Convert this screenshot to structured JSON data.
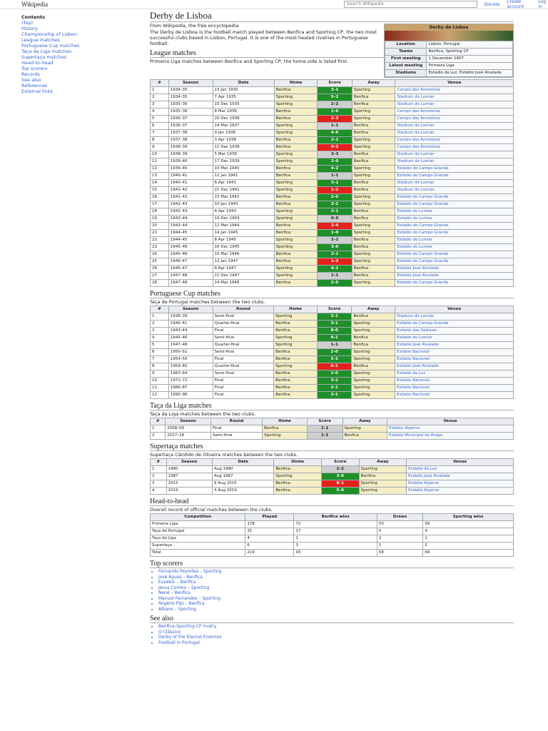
{
  "header": {
    "logo": "Wikipedia",
    "search": "Search Wikipedia",
    "links": [
      "Donate",
      "Create account",
      "Log in"
    ]
  },
  "sidebar": {
    "title": "Contents",
    "items": [
      "(Top)",
      "History",
      "Championship of Lisbon",
      "League matches",
      "Portuguese Cup matches",
      "Taça da Liga matches",
      "Supertaça matches",
      "Head-to-head",
      "Top scorers",
      "Records",
      "See also",
      "References",
      "External links"
    ]
  },
  "article": {
    "title": "Derby de Lisboa",
    "tagline": "From Wikipedia, the free encyclopedia",
    "intro": "The Derby de Lisboa is the football match played between Benfica and Sporting CP, the two most successful clubs based in Lisbon, Portugal. It is one of the most heated rivalries in Portuguese football."
  },
  "infobox": {
    "title": "Derby de Lisboa",
    "rows": [
      [
        "Location",
        "Lisbon, Portugal"
      ],
      [
        "Teams",
        "Benfica, Sporting CP"
      ],
      [
        "First meeting",
        "1 December 1907"
      ],
      [
        "Latest meeting",
        "Primeira Liga"
      ],
      [
        "Stadiums",
        "Estádio da Luz, Estádio José Alvalade"
      ]
    ]
  },
  "result_colors": {
    "home": "#1f8f2a",
    "away": "#e3221b",
    "draw": "#cfcfcf"
  },
  "sections": [
    {
      "heading": "League matches",
      "text": "Primeira Liga matches between Benfica and Sporting CP; the home side is listed first.",
      "table": {
        "headers": [
          "#",
          "Season",
          "Date",
          "Home",
          "Score",
          "Away",
          "Venue"
        ],
        "score_col": 4,
        "rows": [
          [
            "1",
            "1934–35",
            "13 Jan 1935",
            "Benfica",
            "3–1",
            "Sporting",
            "Campo das Amoreiras"
          ],
          [
            "2",
            "1934–35",
            "7 Apr 1935",
            "Sporting",
            "5–2",
            "Benfica",
            "Stadium do Lumiar"
          ],
          [
            "3",
            "1935–36",
            "15 Dec 1935",
            "Sporting",
            "2–2",
            "Benfica",
            "Stadium do Lumiar"
          ],
          [
            "4",
            "1935–36",
            "8 Mar 1936",
            "Benfica",
            "1–0",
            "Sporting",
            "Campo das Amoreiras"
          ],
          [
            "5",
            "1936–37",
            "20 Dec 1936",
            "Benfica",
            "2–3",
            "Sporting",
            "Campo das Amoreiras"
          ],
          [
            "6",
            "1936–37",
            "14 Mar 1937",
            "Sporting",
            "1–1",
            "Benfica",
            "Stadium do Lumiar"
          ],
          [
            "7",
            "1937–38",
            "9 Jan 1938",
            "Sporting",
            "4–0",
            "Benfica",
            "Stadium do Lumiar"
          ],
          [
            "8",
            "1937–38",
            "3 Apr 1938",
            "Benfica",
            "2–1",
            "Sporting",
            "Campo das Amoreiras"
          ],
          [
            "9",
            "1938–39",
            "11 Dec 1938",
            "Benfica",
            "0–2",
            "Sporting",
            "Campo das Amoreiras"
          ],
          [
            "10",
            "1938–39",
            "5 Mar 1939",
            "Sporting",
            "3–3",
            "Benfica",
            "Stadium do Lumiar"
          ],
          [
            "11",
            "1939–40",
            "17 Dec 1939",
            "Sporting",
            "2–0",
            "Benfica",
            "Stadium do Lumiar"
          ],
          [
            "12",
            "1939–40",
            "10 Mar 1940",
            "Benfica",
            "4–2",
            "Sporting",
            "Estádio do Campo Grande"
          ],
          [
            "13",
            "1940–41",
            "12 Jan 1941",
            "Benfica",
            "1–1",
            "Sporting",
            "Estádio do Campo Grande"
          ],
          [
            "14",
            "1940–41",
            "6 Apr 1941",
            "Sporting",
            "3–1",
            "Benfica",
            "Stadium do Lumiar"
          ],
          [
            "15",
            "1941–42",
            "21 Dec 1941",
            "Sporting",
            "1–2",
            "Benfica",
            "Stadium do Lumiar"
          ],
          [
            "16",
            "1941–42",
            "15 Mar 1942",
            "Benfica",
            "2–0",
            "Sporting",
            "Estádio do Campo Grande"
          ],
          [
            "17",
            "1942–43",
            "10 Jan 1943",
            "Benfica",
            "3–2",
            "Sporting",
            "Estádio do Campo Grande"
          ],
          [
            "18",
            "1942–43",
            "4 Apr 1943",
            "Sporting",
            "2–1",
            "Benfica",
            "Estádio do Lumiar"
          ],
          [
            "19",
            "1943–44",
            "19 Dec 1943",
            "Sporting",
            "0–0",
            "Benfica",
            "Estádio do Lumiar"
          ],
          [
            "20",
            "1943–44",
            "12 Mar 1944",
            "Benfica",
            "2–4",
            "Sporting",
            "Estádio do Campo Grande"
          ],
          [
            "21",
            "1944–45",
            "14 Jan 1945",
            "Benfica",
            "1–0",
            "Sporting",
            "Estádio do Campo Grande"
          ],
          [
            "22",
            "1944–45",
            "8 Apr 1945",
            "Sporting",
            "2–2",
            "Benfica",
            "Estádio do Lumiar"
          ],
          [
            "23",
            "1945–46",
            "16 Dec 1945",
            "Sporting",
            "3–0",
            "Benfica",
            "Estádio do Lumiar"
          ],
          [
            "24",
            "1945–46",
            "10 Mar 1946",
            "Benfica",
            "2–1",
            "Sporting",
            "Estádio do Campo Grande"
          ],
          [
            "25",
            "1946–47",
            "12 Jan 1947",
            "Benfica",
            "1–3",
            "Sporting",
            "Estádio do Campo Grande"
          ],
          [
            "26",
            "1946–47",
            "6 Apr 1947",
            "Sporting",
            "4–1",
            "Benfica",
            "Estádio José Alvalade"
          ],
          [
            "27",
            "1947–48",
            "21 Dec 1947",
            "Sporting",
            "1–1",
            "Benfica",
            "Estádio José Alvalade"
          ],
          [
            "28",
            "1947–48",
            "14 Mar 1948",
            "Benfica",
            "2–0",
            "Sporting",
            "Estádio do Campo Grande"
          ]
        ]
      }
    },
    {
      "heading": "Portuguese Cup matches",
      "text": "Taça de Portugal matches between the two clubs.",
      "table": {
        "headers": [
          "#",
          "Season",
          "Round",
          "Home",
          "Score",
          "Away",
          "Venue"
        ],
        "score_col": 4,
        "rows": [
          [
            "1",
            "1938–39",
            "Semi-final",
            "Sporting",
            "2–1",
            "Benfica",
            "Stadium do Lumiar"
          ],
          [
            "2",
            "1940–41",
            "Quarter-final",
            "Benfica",
            "3–1",
            "Sporting",
            "Estádio do Campo Grande"
          ],
          [
            "3",
            "1943–44",
            "Final",
            "Benfica",
            "8–0",
            "Sporting",
            "Estádio das Salésias"
          ],
          [
            "4",
            "1945–46",
            "Semi-final",
            "Sporting",
            "4–2",
            "Benfica",
            "Estádio do Lumiar"
          ],
          [
            "5",
            "1947–48",
            "Quarter-final",
            "Sporting",
            "1–1",
            "Benfica",
            "Estádio José Alvalade"
          ],
          [
            "6",
            "1950–51",
            "Semi-final",
            "Benfica",
            "2–0",
            "Sporting",
            "Estádio Nacional"
          ],
          [
            "7",
            "1954–55",
            "Final",
            "Benfica",
            "2–1",
            "Sporting",
            "Estádio Nacional"
          ],
          [
            "8",
            "1959–60",
            "Quarter-final",
            "Sporting",
            "0–1",
            "Benfica",
            "Estádio José Alvalade"
          ],
          [
            "9",
            "1963–64",
            "Semi-final",
            "Benfica",
            "1–0",
            "Sporting",
            "Estádio da Luz"
          ],
          [
            "10",
            "1971–72",
            "Final",
            "Benfica",
            "3–2",
            "Sporting",
            "Estádio Nacional"
          ],
          [
            "11",
            "1986–87",
            "Final",
            "Benfica",
            "2–1",
            "Sporting",
            "Estádio Nacional"
          ],
          [
            "12",
            "1995–96",
            "Final",
            "Benfica",
            "3–1",
            "Sporting",
            "Estádio Nacional"
          ]
        ]
      }
    },
    {
      "heading": "Taça da Liga matches",
      "text": "Taça da Liga matches between the two clubs.",
      "table": {
        "headers": [
          "#",
          "Season",
          "Round",
          "Home",
          "Score",
          "Away",
          "Venue"
        ],
        "score_col": 4,
        "rows": [
          [
            "1",
            "2008–09",
            "Final",
            "Benfica",
            "1–1",
            "Sporting",
            "Estádio Algarve"
          ],
          [
            "2",
            "2017–18",
            "Semi-final",
            "Sporting",
            "1–1",
            "Benfica",
            "Estádio Municipal de Braga"
          ]
        ]
      }
    },
    {
      "heading": "Supertaça matches",
      "text": "Supertaça Cândido de Oliveira matches between the two clubs.",
      "table": {
        "headers": [
          "#",
          "Season",
          "Date",
          "Home",
          "Score",
          "Away",
          "Venue"
        ],
        "score_col": 4,
        "rows": [
          [
            "1",
            "1980",
            "Aug 1980",
            "Benfica",
            "2–2",
            "Sporting",
            "Estádio da Luz"
          ],
          [
            "2",
            "1987",
            "Aug 1987",
            "Sporting",
            "3–0",
            "Benfica",
            "Estádio José Alvalade"
          ],
          [
            "3",
            "2015",
            "9 Aug 2015",
            "Benfica",
            "0–1",
            "Sporting",
            "Estádio Algarve"
          ],
          [
            "4",
            "2019",
            "4 Aug 2019",
            "Benfica",
            "5–0",
            "Sporting",
            "Estádio Algarve"
          ]
        ]
      }
    },
    {
      "heading": "Head-to-head",
      "text": "Overall record of official matches between the clubs.",
      "table": {
        "headers": [
          "Competition",
          "Played",
          "Benfica wins",
          "Draws",
          "Sporting wins"
        ],
        "rows": [
          [
            "Primeira Liga",
            "178",
            "72",
            "50",
            "56"
          ],
          [
            "Taça de Portugal",
            "31",
            "17",
            "5",
            "9"
          ],
          [
            "Taça da Liga",
            "4",
            "1",
            "2",
            "1"
          ],
          [
            "Supertaça",
            "6",
            "3",
            "1",
            "2"
          ],
          [
            "Total",
            "219",
            "93",
            "58",
            "68"
          ]
        ]
      }
    }
  ],
  "lists": [
    {
      "heading": "Top scorers",
      "items": [
        "Fernando Peyroteo – Sporting",
        "José Águas – Benfica",
        "Eusébio – Benfica",
        "Jesus Correia – Sporting",
        "Nené – Benfica",
        "Manuel Fernandes – Sporting",
        "Rogério Pipi – Benfica",
        "Albano – Sporting"
      ]
    },
    {
      "heading": "See also",
      "items": [
        "Benfica–Sporting CP rivalry",
        "O Clássico",
        "Derby of the Eternal Enemies",
        "Football in Portugal"
      ]
    }
  ]
}
